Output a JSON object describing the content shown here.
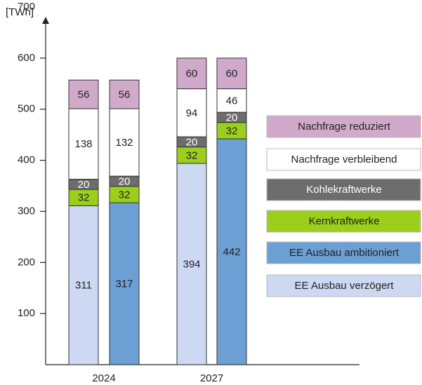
{
  "chart_data": {
    "type": "stacked_bar",
    "y_label": "[TWh]",
    "categories": [
      "2024",
      null,
      "2027",
      null
    ],
    "ylim": [
      0,
      700
    ],
    "yticks": [
      100,
      200,
      300,
      400,
      500,
      600,
      700
    ],
    "series": [
      {
        "name": "EE Ausbau verzögert",
        "color": "#cdd9f2",
        "values": [
          311,
          null,
          394,
          null
        ]
      },
      {
        "name": "EE Ausbau ambitioniert",
        "color": "#6c9fd4",
        "values": [
          null,
          317,
          null,
          442
        ]
      },
      {
        "name": "Kernkraftwerke",
        "color": "#9ccf1c",
        "values": [
          32,
          32,
          32,
          32
        ]
      },
      {
        "name": "Kohlekraftwerke",
        "color": "#6d6d6d",
        "values": [
          20,
          20,
          20,
          20
        ]
      },
      {
        "name": "Nachfrage verbleibend",
        "color": "#ffffff",
        "values": [
          138,
          132,
          94,
          46
        ]
      },
      {
        "name": "Nachfrage reduziert",
        "color": "#d1aacb",
        "values": [
          56,
          56,
          60,
          60
        ]
      }
    ]
  }
}
